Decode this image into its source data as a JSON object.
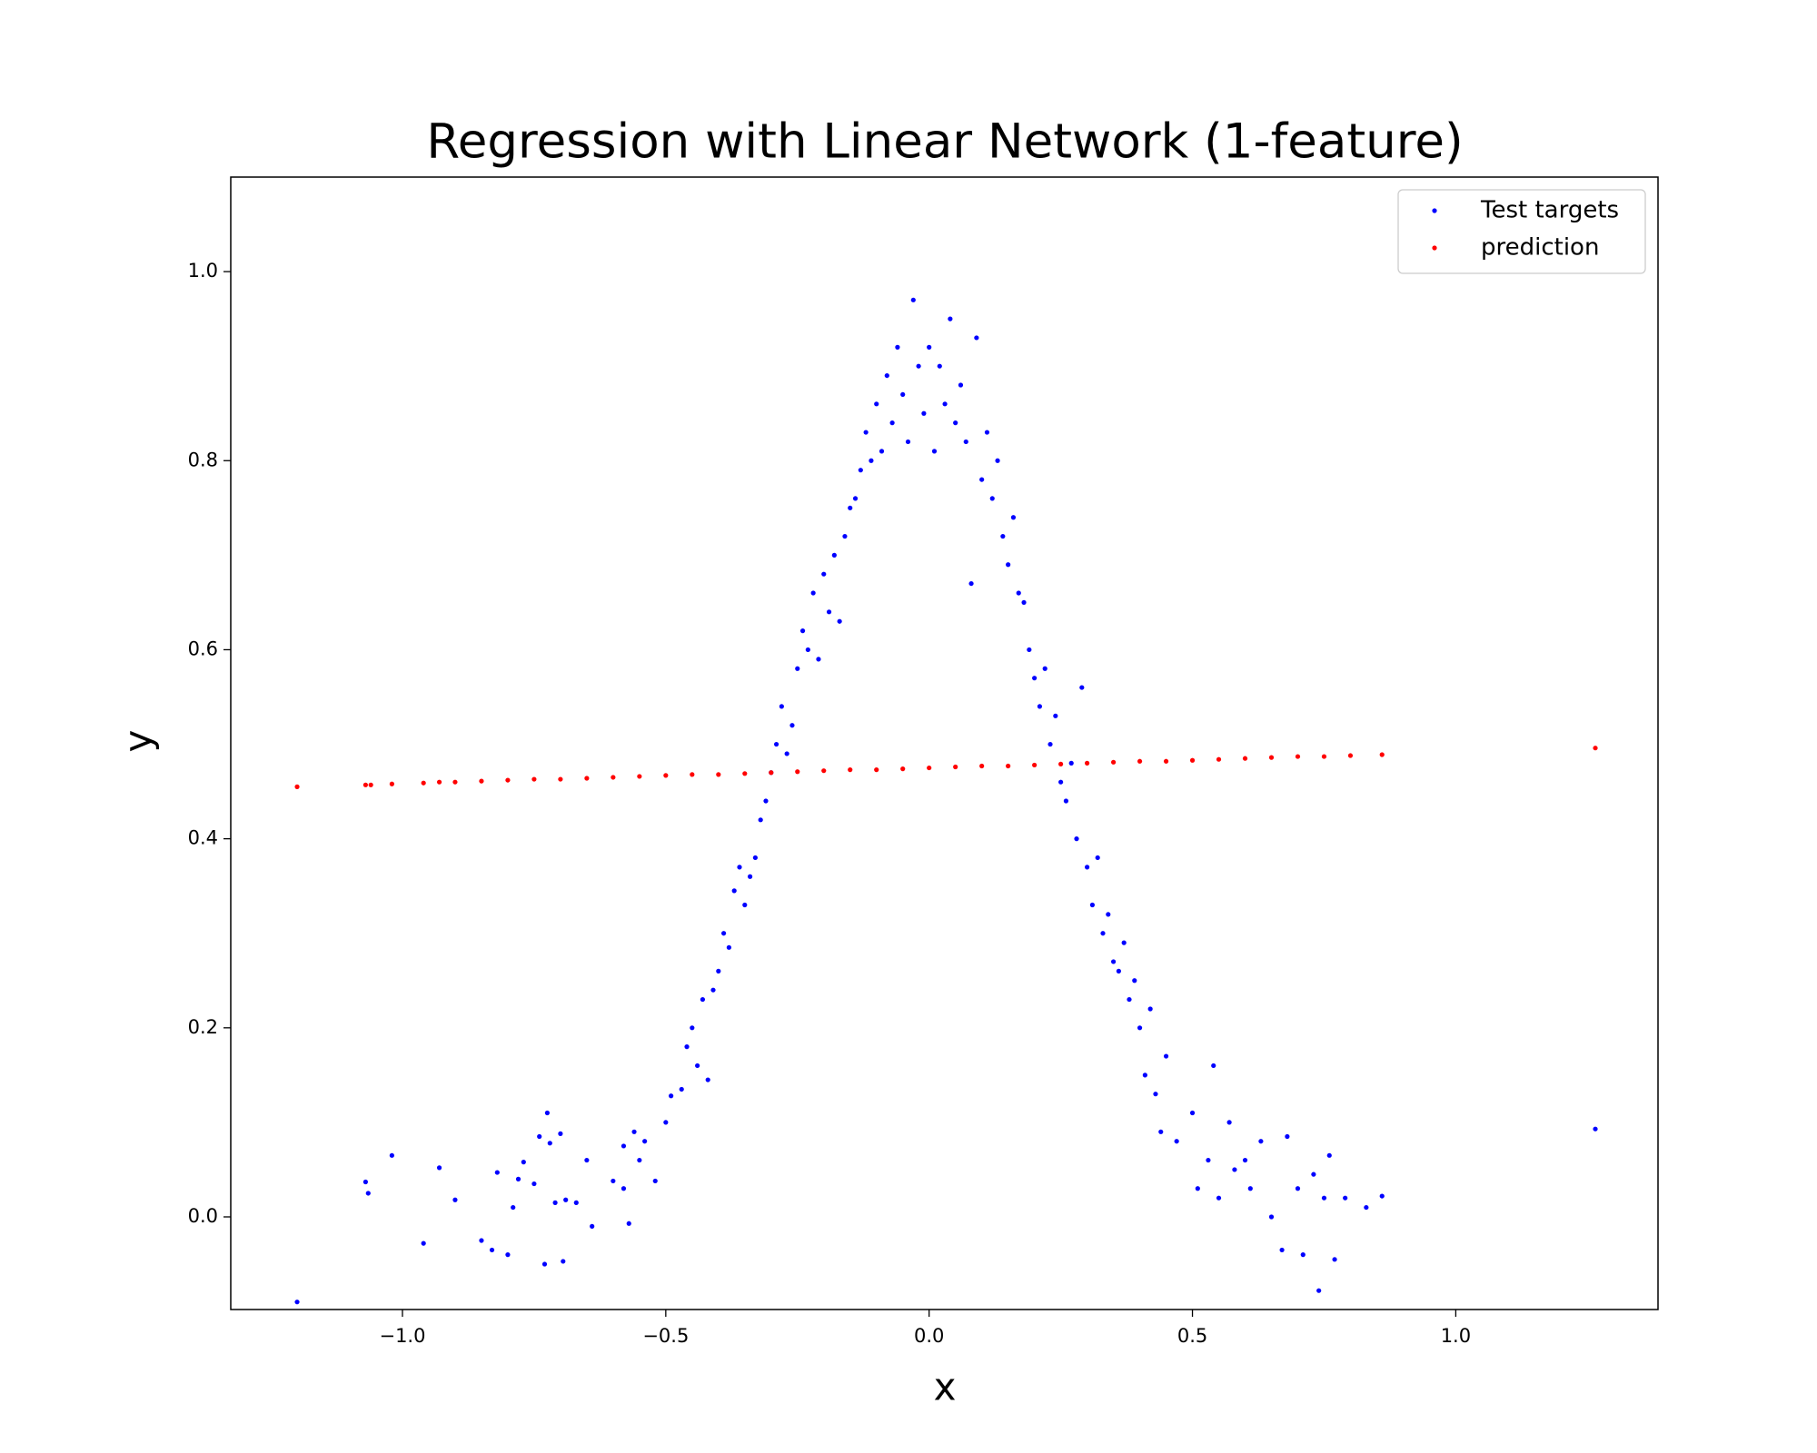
{
  "chart_data": {
    "type": "scatter",
    "title": "Regression with Linear Network (1-feature)",
    "x_label": "x",
    "y_label": "y",
    "xlim": [
      -1.326,
      1.384
    ],
    "ylim": [
      -0.098,
      1.1
    ],
    "xticks": [
      {
        "value": -1.0,
        "label": "−1.0"
      },
      {
        "value": -0.5,
        "label": "−0.5"
      },
      {
        "value": 0.0,
        "label": "0.0"
      },
      {
        "value": 0.5,
        "label": "0.5"
      },
      {
        "value": 1.0,
        "label": "1.0"
      }
    ],
    "yticks": [
      {
        "value": 0.0,
        "label": "0.0"
      },
      {
        "value": 0.2,
        "label": "0.2"
      },
      {
        "value": 0.4,
        "label": "0.4"
      },
      {
        "value": 0.6,
        "label": "0.6"
      },
      {
        "value": 0.8,
        "label": "0.8"
      },
      {
        "value": 1.0,
        "label": "1.0"
      }
    ],
    "legend": "upper right",
    "grid": false,
    "series": [
      {
        "name": "Test targets",
        "color": "#0000ff",
        "x": [
          -1.2,
          -1.07,
          -1.065,
          -1.02,
          -0.96,
          -0.93,
          -0.9,
          -0.85,
          -0.83,
          -0.82,
          -0.8,
          -0.79,
          -0.78,
          -0.77,
          -0.75,
          -0.74,
          -0.73,
          -0.725,
          -0.72,
          -0.71,
          -0.7,
          -0.695,
          -0.69,
          -0.67,
          -0.65,
          -0.64,
          -0.6,
          -0.58,
          -0.58,
          -0.57,
          -0.56,
          -0.55,
          -0.54,
          -0.52,
          -0.5,
          -0.49,
          -0.47,
          -0.46,
          -0.45,
          -0.44,
          -0.43,
          -0.42,
          -0.41,
          -0.4,
          -0.39,
          -0.38,
          -0.37,
          -0.36,
          -0.35,
          -0.34,
          -0.33,
          -0.32,
          -0.31,
          -0.3,
          -0.29,
          -0.28,
          -0.27,
          -0.26,
          -0.25,
          -0.24,
          -0.23,
          -0.22,
          -0.21,
          -0.2,
          -0.19,
          -0.18,
          -0.17,
          -0.16,
          -0.15,
          -0.14,
          -0.13,
          -0.12,
          -0.11,
          -0.1,
          -0.09,
          -0.08,
          -0.07,
          -0.06,
          -0.05,
          -0.04,
          -0.03,
          -0.02,
          -0.01,
          0.0,
          0.01,
          0.02,
          0.03,
          0.04,
          0.05,
          0.06,
          0.07,
          0.08,
          0.09,
          0.1,
          0.11,
          0.12,
          0.13,
          0.14,
          0.15,
          0.16,
          0.17,
          0.18,
          0.19,
          0.2,
          0.21,
          0.22,
          0.23,
          0.24,
          0.25,
          0.26,
          0.27,
          0.28,
          0.29,
          0.3,
          0.31,
          0.32,
          0.33,
          0.34,
          0.35,
          0.36,
          0.37,
          0.38,
          0.39,
          0.4,
          0.41,
          0.42,
          0.43,
          0.44,
          0.45,
          0.47,
          0.5,
          0.51,
          0.53,
          0.54,
          0.55,
          0.57,
          0.58,
          0.6,
          0.61,
          0.63,
          0.65,
          0.67,
          0.68,
          0.7,
          0.71,
          0.73,
          0.74,
          0.75,
          0.76,
          0.77,
          0.79,
          0.83,
          0.86,
          1.265
        ],
        "y": [
          -0.09,
          0.037,
          0.025,
          0.065,
          -0.028,
          0.052,
          0.018,
          -0.025,
          -0.035,
          0.047,
          -0.04,
          0.01,
          0.04,
          0.058,
          0.035,
          0.085,
          -0.05,
          0.11,
          0.078,
          0.015,
          0.088,
          -0.047,
          0.018,
          0.015,
          0.06,
          -0.01,
          0.038,
          0.03,
          0.075,
          -0.007,
          0.09,
          0.06,
          0.08,
          0.038,
          0.1,
          0.128,
          0.135,
          0.18,
          0.2,
          0.16,
          0.23,
          0.145,
          0.24,
          0.26,
          0.3,
          0.285,
          0.345,
          0.37,
          0.33,
          0.36,
          0.38,
          0.42,
          0.44,
          0.47,
          0.5,
          0.54,
          0.49,
          0.52,
          0.58,
          0.62,
          0.6,
          0.66,
          0.59,
          0.68,
          0.64,
          0.7,
          0.63,
          0.72,
          0.75,
          0.76,
          0.79,
          0.83,
          0.8,
          0.86,
          0.81,
          0.89,
          0.84,
          0.92,
          0.87,
          0.82,
          0.97,
          0.9,
          0.85,
          0.92,
          0.81,
          0.9,
          0.86,
          0.95,
          0.84,
          0.88,
          0.82,
          0.67,
          0.93,
          0.78,
          0.83,
          0.76,
          0.8,
          0.72,
          0.69,
          0.74,
          0.66,
          0.65,
          0.6,
          0.57,
          0.54,
          0.58,
          0.5,
          0.53,
          0.46,
          0.44,
          0.48,
          0.4,
          0.56,
          0.37,
          0.33,
          0.38,
          0.3,
          0.32,
          0.27,
          0.26,
          0.29,
          0.23,
          0.25,
          0.2,
          0.15,
          0.22,
          0.13,
          0.09,
          0.17,
          0.08,
          0.11,
          0.03,
          0.06,
          0.16,
          0.02,
          0.1,
          0.05,
          0.06,
          0.03,
          0.08,
          0.0,
          -0.035,
          0.085,
          0.03,
          -0.04,
          0.045,
          -0.078,
          0.02,
          0.065,
          -0.045,
          0.02,
          0.01,
          0.022,
          0.093
        ]
      },
      {
        "name": "prediction",
        "color": "#ff0000",
        "x": [
          -1.2,
          -1.07,
          -1.06,
          -1.02,
          -0.96,
          -0.93,
          -0.9,
          -0.85,
          -0.8,
          -0.75,
          -0.7,
          -0.65,
          -0.6,
          -0.55,
          -0.5,
          -0.45,
          -0.4,
          -0.35,
          -0.3,
          -0.25,
          -0.2,
          -0.15,
          -0.1,
          -0.05,
          0.0,
          0.05,
          0.1,
          0.15,
          0.2,
          0.25,
          0.3,
          0.35,
          0.4,
          0.45,
          0.5,
          0.55,
          0.6,
          0.65,
          0.7,
          0.75,
          0.8,
          0.86,
          1.265
        ],
        "y": [
          0.455,
          0.457,
          0.457,
          0.458,
          0.459,
          0.46,
          0.46,
          0.461,
          0.462,
          0.463,
          0.463,
          0.464,
          0.465,
          0.466,
          0.467,
          0.468,
          0.468,
          0.469,
          0.47,
          0.471,
          0.472,
          0.473,
          0.473,
          0.474,
          0.475,
          0.476,
          0.477,
          0.477,
          0.478,
          0.479,
          0.48,
          0.481,
          0.482,
          0.482,
          0.483,
          0.484,
          0.485,
          0.486,
          0.487,
          0.487,
          0.488,
          0.489,
          0.496
        ]
      }
    ]
  }
}
